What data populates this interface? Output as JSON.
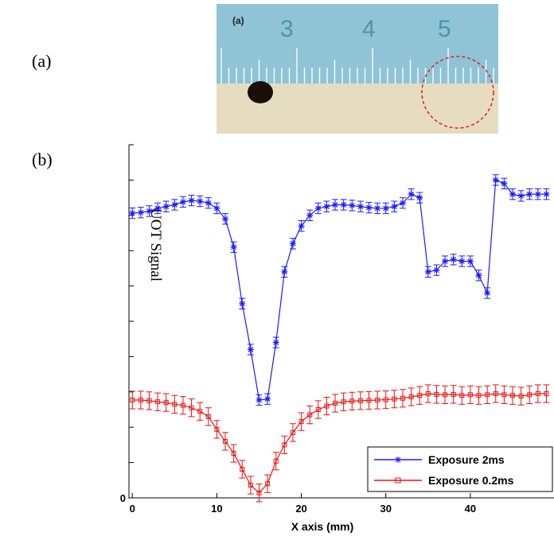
{
  "panel_a": {
    "label": "(a)",
    "inset_label": "(a)",
    "ruler_numbers": [
      "3",
      "4",
      "5"
    ]
  },
  "panel_b": {
    "label": "(b)"
  },
  "chart_data": {
    "type": "line",
    "xlabel": "X axis (mm)",
    "ylabel": "UOT Signal",
    "x": [
      0,
      1,
      2,
      3,
      4,
      5,
      6,
      7,
      8,
      9,
      10,
      11,
      12,
      13,
      14,
      15,
      16,
      17,
      18,
      19,
      20,
      21,
      22,
      23,
      24,
      25,
      26,
      27,
      28,
      29,
      30,
      31,
      32,
      33,
      34,
      35,
      36,
      37,
      38,
      39,
      40,
      41,
      42,
      43,
      44,
      45,
      46,
      47,
      48,
      49
    ],
    "series": [
      {
        "name": "Exposure 2ms",
        "color": "#1a1aff",
        "marker": "star",
        "error": 0.15,
        "values": [
          8.06,
          8.08,
          8.12,
          8.2,
          8.25,
          8.3,
          8.38,
          8.42,
          8.4,
          8.35,
          8.2,
          7.9,
          7.1,
          5.5,
          4.2,
          2.77,
          2.8,
          4.4,
          6.4,
          7.2,
          7.7,
          8.0,
          8.2,
          8.25,
          8.3,
          8.3,
          8.28,
          8.25,
          8.22,
          8.2,
          8.2,
          8.25,
          8.35,
          8.6,
          8.5,
          6.4,
          6.45,
          6.7,
          6.75,
          6.7,
          6.7,
          6.3,
          5.8,
          9.0,
          8.9,
          8.6,
          8.55,
          8.6,
          8.6,
          8.6
        ]
      },
      {
        "name": "Exposure 0.2ms",
        "color": "#ee1111",
        "marker": "square",
        "error": 0.25,
        "values": [
          2.77,
          2.77,
          2.75,
          2.72,
          2.7,
          2.65,
          2.62,
          2.55,
          2.45,
          2.3,
          1.94,
          1.6,
          1.26,
          0.81,
          0.36,
          0.14,
          0.4,
          1.04,
          1.5,
          1.85,
          2.16,
          2.35,
          2.5,
          2.6,
          2.68,
          2.72,
          2.74,
          2.75,
          2.76,
          2.77,
          2.78,
          2.8,
          2.82,
          2.86,
          2.9,
          2.95,
          2.93,
          2.92,
          2.93,
          2.9,
          2.92,
          2.9,
          2.92,
          2.95,
          2.92,
          2.9,
          2.88,
          2.92,
          2.95,
          2.95
        ]
      }
    ],
    "xlim": [
      -0.4,
      49.9
    ],
    "xticks": [
      0,
      10,
      20,
      30,
      40
    ],
    "ylim": [
      0,
      10
    ],
    "yticks": [
      0
    ],
    "y_minor_ticks": [
      1,
      2,
      3,
      4,
      5,
      6,
      7,
      8,
      9,
      10
    ],
    "legend": "lower right"
  }
}
